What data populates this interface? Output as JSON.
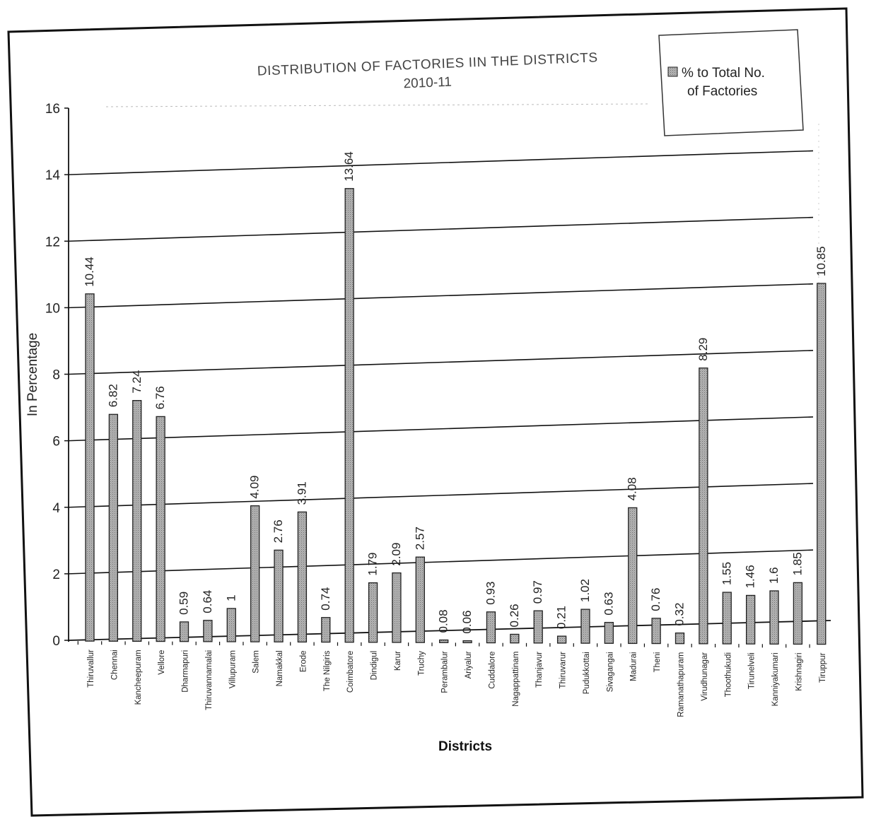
{
  "chart_data": {
    "type": "bar",
    "title": "DISTRIBUTION OF FACTORIES IIN THE DISTRICTS",
    "subtitle": "2010-11",
    "xlabel": "Districts",
    "ylabel": "In Percentage",
    "ylim": [
      0,
      16
    ],
    "yticks": [
      0,
      2,
      4,
      6,
      8,
      10,
      12,
      14,
      16
    ],
    "grid": true,
    "legend_position": "top-right",
    "series": [
      {
        "name": "% to Total No. of Factories",
        "color": "#a8a8a8",
        "values": [
          10.44,
          6.82,
          7.24,
          6.76,
          0.59,
          0.64,
          1,
          4.09,
          2.76,
          3.91,
          0.74,
          13.64,
          1.79,
          2.09,
          2.57,
          0.08,
          0.06,
          0.93,
          0.26,
          0.97,
          0.21,
          1.02,
          0.63,
          4.08,
          0.76,
          0.32,
          8.29,
          1.55,
          1.46,
          1.6,
          1.85,
          10.85
        ]
      }
    ],
    "categories": [
      "Thiruvallur",
      "Chennai",
      "Kancheepuram",
      "Vellore",
      "Dharmapuri",
      "Thiruvannamalai",
      "Villupuram",
      "Salem",
      "Namakkal",
      "Erode",
      "The Nilgiris",
      "Coimbatore",
      "Dindigul",
      "Karur",
      "Truchy",
      "Perambalur",
      "Ariyalur",
      "Cuddalore",
      "Nagappattinam",
      "Thanjavur",
      "Thiruvarur",
      "Pudukkottai",
      "Sivagangai",
      "Madurai",
      "Theni",
      "Ramanathapuram",
      "Virudhunagar",
      "Thoothukudi",
      "Tirunelveli",
      "Kanniyakumari",
      "Krishnagiri",
      "Tiruppur"
    ],
    "data_labels": [
      "10.44",
      "6.82",
      "7.24",
      "6.76",
      "0.59",
      "0.64",
      "1",
      "4.09",
      "2.76",
      "3.91",
      "0.74",
      "13.64",
      "1.79",
      "2.09",
      "2.57",
      "0.08",
      "0.06",
      "0.93",
      "0.26",
      "0.97",
      "0.21",
      "1.02",
      "0.63",
      "4.08",
      "0.76",
      "0.32",
      "8.29",
      "1.55",
      "1.46",
      "1.6",
      "1.85",
      "10.85"
    ]
  }
}
